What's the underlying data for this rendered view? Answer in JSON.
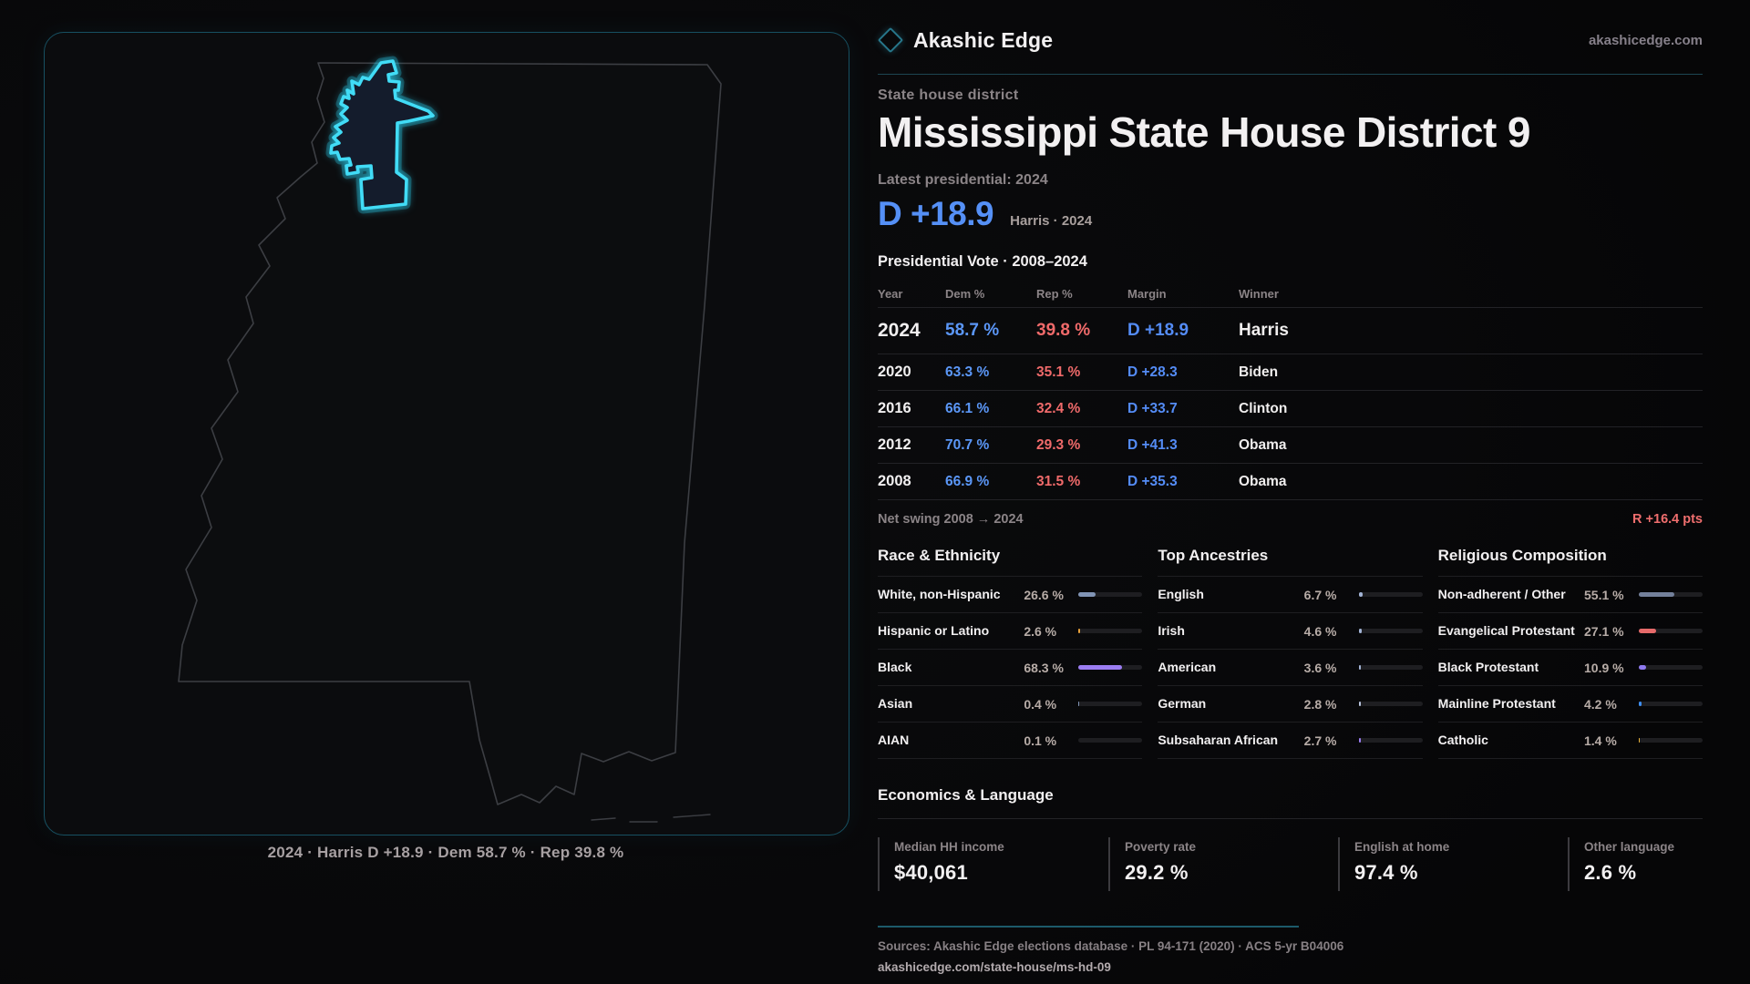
{
  "brand": {
    "name": "Akashic Edge",
    "domain": "akashicedge.com"
  },
  "page": {
    "eyebrow": "State house district",
    "title": "Mississippi State House District 9",
    "latest_label": "Latest presidential: 2024",
    "headline_margin": "D +18.9",
    "headline_context": "Harris · 2024"
  },
  "table": {
    "title": "Presidential Vote · 2008–2024",
    "columns": [
      "Year",
      "Dem %",
      "Rep %",
      "Margin",
      "Winner"
    ],
    "rows": [
      {
        "year": "2024",
        "dem": "58.7 %",
        "rep": "39.8 %",
        "margin": "D +18.9",
        "winner": "Harris",
        "highlight": true
      },
      {
        "year": "2020",
        "dem": "63.3 %",
        "rep": "35.1 %",
        "margin": "D +28.3",
        "winner": "Biden",
        "highlight": false
      },
      {
        "year": "2016",
        "dem": "66.1 %",
        "rep": "32.4 %",
        "margin": "D +33.7",
        "winner": "Clinton",
        "highlight": false
      },
      {
        "year": "2012",
        "dem": "70.7 %",
        "rep": "29.3 %",
        "margin": "D +41.3",
        "winner": "Obama",
        "highlight": false
      },
      {
        "year": "2008",
        "dem": "66.9 %",
        "rep": "31.5 %",
        "margin": "D +35.3",
        "winner": "Obama",
        "highlight": false
      }
    ],
    "net_swing_label": "Net swing 2008 → 2024",
    "net_swing_value": "R +16.4 pts"
  },
  "demographics": [
    {
      "title": "Race & Ethnicity",
      "rows": [
        {
          "label": "White, non-Hispanic",
          "value": "26.6 %",
          "pct": 26.6,
          "color": "#8194b5"
        },
        {
          "label": "Hispanic or Latino",
          "value": "2.6 %",
          "pct": 2.6,
          "color": "#e8a13a"
        },
        {
          "label": "Black",
          "value": "68.3 %",
          "pct": 68.3,
          "color": "#9b7df2"
        },
        {
          "label": "Asian",
          "value": "0.4 %",
          "pct": 0.4,
          "color": "#8194b5"
        },
        {
          "label": "AIAN",
          "value": "0.1 %",
          "pct": 0.1,
          "color": "#b0b0b5"
        }
      ]
    },
    {
      "title": "Top Ancestries",
      "rows": [
        {
          "label": "English",
          "value": "6.7 %",
          "pct": 6.7,
          "color": "#a3b4d6"
        },
        {
          "label": "Irish",
          "value": "4.6 %",
          "pct": 4.6,
          "color": "#a3b4d6"
        },
        {
          "label": "American",
          "value": "3.6 %",
          "pct": 3.6,
          "color": "#a3b4d6"
        },
        {
          "label": "German",
          "value": "2.8 %",
          "pct": 2.8,
          "color": "#b9c4dd"
        },
        {
          "label": "Subsaharan African",
          "value": "2.7 %",
          "pct": 2.7,
          "color": "#9b7df2"
        }
      ]
    },
    {
      "title": "Religious Composition",
      "rows": [
        {
          "label": "Non-adherent / Other",
          "value": "55.1 %",
          "pct": 55.1,
          "color": "#73809b"
        },
        {
          "label": "Evangelical Protestant",
          "value": "27.1 %",
          "pct": 27.1,
          "color": "#e66a6a"
        },
        {
          "label": "Black Protestant",
          "value": "10.9 %",
          "pct": 10.9,
          "color": "#8f7af0"
        },
        {
          "label": "Mainline Protestant",
          "value": "4.2 %",
          "pct": 4.2,
          "color": "#3e8ef0"
        },
        {
          "label": "Catholic",
          "value": "1.4 %",
          "pct": 1.4,
          "color": "#e8b23a"
        }
      ]
    }
  ],
  "economics": {
    "title": "Economics & Language",
    "stats": [
      {
        "label": "Median HH income",
        "value": "$40,061"
      },
      {
        "label": "Poverty rate",
        "value": "29.2 %"
      },
      {
        "label": "English at home",
        "value": "97.4 %"
      },
      {
        "label": "Other language",
        "value": "2.6 %"
      }
    ]
  },
  "footer": {
    "sources": "Sources: Akashic Edge elections database · PL 94-171 (2020) · ACS 5-yr B04006",
    "permalink": "akashicedge.com/state-house/ms-hd-09"
  },
  "map": {
    "caption": "2024 · Harris D +18.9 · Dem 58.7 % · Rep 39.8 %",
    "district_color": "#41dcf6",
    "state_outline_color": "#3c3e43"
  },
  "chart_data": [
    {
      "type": "table",
      "title": "Presidential Vote · 2008–2024",
      "columns": [
        "Year",
        "Dem %",
        "Rep %",
        "Margin",
        "Winner"
      ],
      "rows": [
        [
          2024,
          58.7,
          39.8,
          "D +18.9",
          "Harris"
        ],
        [
          2020,
          63.3,
          35.1,
          "D +28.3",
          "Biden"
        ],
        [
          2016,
          66.1,
          32.4,
          "D +33.7",
          "Clinton"
        ],
        [
          2012,
          70.7,
          29.3,
          "D +41.3",
          "Obama"
        ],
        [
          2008,
          66.9,
          31.5,
          "D +35.3",
          "Obama"
        ]
      ],
      "net_swing_pts": "R +16.4"
    },
    {
      "type": "bar",
      "title": "Race & Ethnicity",
      "categories": [
        "White, non-Hispanic",
        "Hispanic or Latino",
        "Black",
        "Asian",
        "AIAN"
      ],
      "values": [
        26.6,
        2.6,
        68.3,
        0.4,
        0.1
      ],
      "unit": "%",
      "xlim": [
        0,
        100
      ]
    },
    {
      "type": "bar",
      "title": "Top Ancestries",
      "categories": [
        "English",
        "Irish",
        "American",
        "German",
        "Subsaharan African"
      ],
      "values": [
        6.7,
        4.6,
        3.6,
        2.8,
        2.7
      ],
      "unit": "%",
      "xlim": [
        0,
        100
      ]
    },
    {
      "type": "bar",
      "title": "Religious Composition",
      "categories": [
        "Non-adherent / Other",
        "Evangelical Protestant",
        "Black Protestant",
        "Mainline Protestant",
        "Catholic"
      ],
      "values": [
        55.1,
        27.1,
        10.9,
        4.2,
        1.4
      ],
      "unit": "%",
      "xlim": [
        0,
        100
      ]
    }
  ]
}
